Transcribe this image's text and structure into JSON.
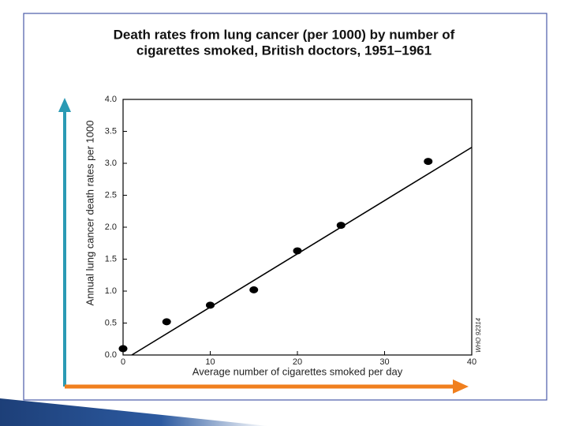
{
  "chart_data": {
    "type": "scatter",
    "title": [
      "Death rates from lung cancer (per 1000) by number of",
      "cigarettes smoked, British doctors, 1951–1961"
    ],
    "x_label": "Average number of cigarettes smoked per day",
    "y_label": "Annual lung cancer death rates per 1000",
    "note": "WHO 92314",
    "x": [
      0,
      5,
      10,
      15,
      20,
      25,
      35
    ],
    "values": [
      0.1,
      0.52,
      0.78,
      1.02,
      1.63,
      2.03,
      3.03
    ],
    "color": "#000000",
    "fit_line": {
      "x": [
        1,
        40
      ],
      "values": [
        0,
        3.25
      ]
    },
    "xlim": [
      0,
      40
    ],
    "xticks": [
      0,
      10,
      20,
      30,
      40
    ],
    "ylim": [
      0,
      4
    ],
    "yticks": [
      {
        "value": 0,
        "label": "0.0"
      },
      0.5,
      {
        "value": 1,
        "label": "1.0"
      },
      1.5,
      {
        "value": 2,
        "label": "2.0"
      },
      2.5,
      {
        "value": 3,
        "label": "3.0"
      },
      3.5,
      {
        "value": 4,
        "label": "4.0"
      }
    ]
  }
}
